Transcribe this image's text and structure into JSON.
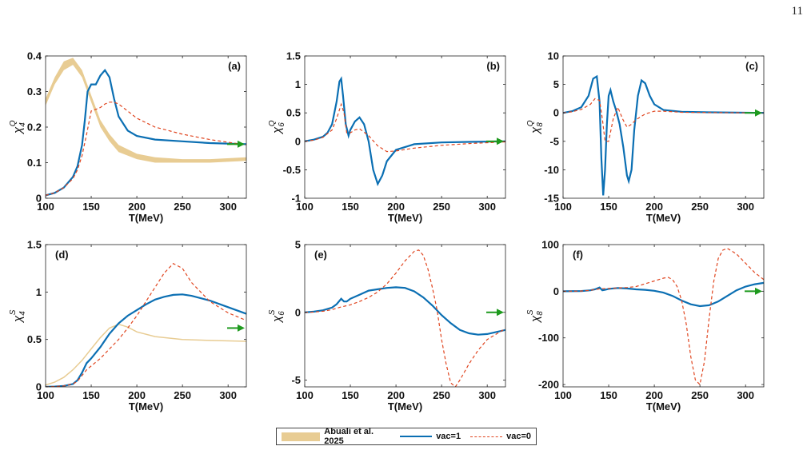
{
  "page_number": "11",
  "legend": {
    "band_label": "Abuali et al.  2025",
    "vac1_label": "vac=1",
    "vac0_label": "vac=0"
  },
  "colors": {
    "band": "#e8cc93",
    "vac1": "#0b6fb3",
    "vac0": "#e0451f",
    "arrow": "#1e9a1e"
  },
  "chart_data": [
    {
      "type": "line",
      "panel": "(a)",
      "xlabel": "T(MeV)",
      "ylabel_base": "χ",
      "ylabel_sub": "4",
      "ylabel_sup": "Q",
      "xlim": [
        100,
        320
      ],
      "ylim": [
        0,
        0.4
      ],
      "xticks": [
        100,
        150,
        200,
        250,
        300
      ],
      "yticks": [
        0,
        0.1,
        0.2,
        0.3,
        0.4
      ],
      "yticklabels": [
        "0",
        "0.1",
        "0.2",
        "0.3",
        "0.4"
      ],
      "arrow_value": 0.152,
      "series": [
        {
          "name": "vac=1",
          "x": [
            100,
            110,
            120,
            130,
            135,
            140,
            143,
            146,
            150,
            155,
            160,
            165,
            170,
            175,
            180,
            190,
            200,
            220,
            250,
            280,
            320
          ],
          "y": [
            0.008,
            0.015,
            0.03,
            0.06,
            0.09,
            0.15,
            0.22,
            0.3,
            0.32,
            0.32,
            0.345,
            0.36,
            0.34,
            0.28,
            0.23,
            0.19,
            0.175,
            0.165,
            0.16,
            0.155,
            0.152
          ]
        },
        {
          "name": "vac=0",
          "x": [
            100,
            110,
            120,
            130,
            135,
            140,
            145,
            150,
            155,
            160,
            165,
            170,
            175,
            180,
            190,
            200,
            220,
            250,
            280,
            320
          ],
          "y": [
            0.008,
            0.015,
            0.03,
            0.055,
            0.08,
            0.12,
            0.18,
            0.245,
            0.25,
            0.255,
            0.265,
            0.27,
            0.27,
            0.265,
            0.245,
            0.225,
            0.2,
            0.18,
            0.165,
            0.15
          ]
        }
      ],
      "band": {
        "x": [
          100,
          110,
          120,
          130,
          140,
          150,
          160,
          170,
          180,
          200,
          220,
          250,
          280,
          320
        ],
        "lower": [
          0.26,
          0.32,
          0.36,
          0.375,
          0.34,
          0.27,
          0.2,
          0.16,
          0.13,
          0.11,
          0.1,
          0.1,
          0.1,
          0.105
        ],
        "upper": [
          0.28,
          0.34,
          0.385,
          0.395,
          0.36,
          0.29,
          0.22,
          0.18,
          0.15,
          0.125,
          0.115,
          0.11,
          0.11,
          0.115
        ]
      }
    },
    {
      "type": "line",
      "panel": "(b)",
      "xlabel": "T(MeV)",
      "ylabel_base": "χ",
      "ylabel_sub": "6",
      "ylabel_sup": "Q",
      "xlim": [
        100,
        320
      ],
      "ylim": [
        -1,
        1.5
      ],
      "xticks": [
        100,
        150,
        200,
        250,
        300
      ],
      "yticks": [
        -1,
        -0.5,
        0,
        0.5,
        1,
        1.5
      ],
      "yticklabels": [
        "-1",
        "-0.5",
        "0",
        "0.5",
        "1",
        "1.5"
      ],
      "arrow_value": 0.0,
      "series": [
        {
          "name": "vac=1",
          "x": [
            100,
            110,
            120,
            125,
            130,
            135,
            138,
            140,
            142,
            145,
            148,
            150,
            155,
            160,
            165,
            170,
            175,
            180,
            185,
            190,
            200,
            220,
            250,
            280,
            320
          ],
          "y": [
            0,
            0.03,
            0.08,
            0.15,
            0.3,
            0.7,
            1.05,
            1.1,
            0.8,
            0.3,
            0.1,
            0.2,
            0.35,
            0.42,
            0.3,
            0.0,
            -0.5,
            -0.75,
            -0.6,
            -0.35,
            -0.15,
            -0.05,
            -0.02,
            -0.01,
            0
          ]
        },
        {
          "name": "vac=0",
          "x": [
            100,
            110,
            120,
            130,
            135,
            140,
            143,
            146,
            150,
            155,
            160,
            170,
            180,
            190,
            200,
            220,
            250,
            280,
            320
          ],
          "y": [
            0,
            0.02,
            0.07,
            0.2,
            0.4,
            0.65,
            0.5,
            0.15,
            0.15,
            0.2,
            0.22,
            0.1,
            -0.08,
            -0.18,
            -0.17,
            -0.12,
            -0.07,
            -0.04,
            -0.01
          ]
        }
      ]
    },
    {
      "type": "line",
      "panel": "(c)",
      "xlabel": "T(MeV)",
      "ylabel_base": "χ",
      "ylabel_sub": "8",
      "ylabel_sup": "Q",
      "xlim": [
        100,
        320
      ],
      "ylim": [
        -15,
        10
      ],
      "xticks": [
        100,
        150,
        200,
        250,
        300
      ],
      "yticks": [
        -15,
        -10,
        -5,
        0,
        5,
        10
      ],
      "yticklabels": [
        "-15",
        "-10",
        "-5",
        "0",
        "5",
        "10"
      ],
      "arrow_value": 0.0,
      "series": [
        {
          "name": "vac=1",
          "x": [
            100,
            110,
            120,
            128,
            133,
            137,
            140,
            142,
            144,
            146,
            148,
            150,
            152,
            155,
            158,
            162,
            166,
            170,
            172,
            175,
            178,
            182,
            186,
            190,
            195,
            200,
            210,
            230,
            260,
            320
          ],
          "y": [
            0,
            0.3,
            1,
            3,
            6,
            6.4,
            2,
            -8,
            -14.5,
            -10,
            -2,
            3,
            4,
            2,
            0.5,
            -2,
            -6,
            -11,
            -12,
            -10,
            -3,
            3,
            5.7,
            5.2,
            3,
            1.5,
            0.5,
            0.2,
            0.1,
            0
          ]
        },
        {
          "name": "vac=0",
          "x": [
            100,
            110,
            120,
            130,
            135,
            140,
            143,
            146,
            150,
            155,
            160,
            165,
            170,
            175,
            180,
            190,
            200,
            210,
            230,
            260,
            320
          ],
          "y": [
            0,
            0.2,
            0.6,
            1.5,
            2.5,
            2.2,
            -1,
            -5,
            -5,
            -1,
            1,
            -1,
            -2.5,
            -2,
            -1.2,
            -0.2,
            0.3,
            0.3,
            0.1,
            0.05,
            0
          ]
        }
      ]
    },
    {
      "type": "line",
      "panel": "(d)",
      "xlabel": "T(MeV)",
      "ylabel_base": "χ",
      "ylabel_sub": "4",
      "ylabel_sup": "S",
      "xlim": [
        100,
        320
      ],
      "ylim": [
        0,
        1.5
      ],
      "xticks": [
        100,
        150,
        200,
        250,
        300
      ],
      "yticks": [
        0,
        0.5,
        1,
        1.5
      ],
      "yticklabels": [
        "0",
        "0.5",
        "1",
        "1.5"
      ],
      "arrow_value": 0.62,
      "series": [
        {
          "name": "vac=1",
          "x": [
            100,
            110,
            120,
            130,
            135,
            140,
            145,
            150,
            160,
            170,
            180,
            190,
            200,
            210,
            220,
            230,
            240,
            250,
            260,
            280,
            300,
            320
          ],
          "y": [
            0,
            0.003,
            0.01,
            0.03,
            0.07,
            0.15,
            0.25,
            0.3,
            0.42,
            0.56,
            0.67,
            0.75,
            0.81,
            0.87,
            0.92,
            0.95,
            0.97,
            0.975,
            0.96,
            0.91,
            0.84,
            0.77
          ]
        },
        {
          "name": "vac=0",
          "x": [
            100,
            110,
            120,
            130,
            135,
            140,
            145,
            150,
            160,
            170,
            180,
            190,
            200,
            210,
            220,
            230,
            240,
            250,
            260,
            280,
            300,
            320
          ],
          "y": [
            0,
            0.003,
            0.01,
            0.03,
            0.06,
            0.12,
            0.18,
            0.22,
            0.3,
            0.4,
            0.5,
            0.62,
            0.75,
            0.9,
            1.05,
            1.2,
            1.3,
            1.25,
            1.1,
            0.9,
            0.78,
            0.7
          ]
        },
        {
          "name": "band",
          "x": [
            100,
            110,
            120,
            130,
            140,
            150,
            160,
            170,
            180,
            190,
            200,
            220,
            250,
            280,
            320
          ],
          "y": [
            0.02,
            0.05,
            0.1,
            0.18,
            0.28,
            0.4,
            0.52,
            0.62,
            0.66,
            0.63,
            0.58,
            0.53,
            0.5,
            0.49,
            0.48
          ]
        }
      ]
    },
    {
      "type": "line",
      "panel": "(e)",
      "xlabel": "T(MeV)",
      "ylabel_base": "χ",
      "ylabel_sub": "6",
      "ylabel_sup": "S",
      "xlim": [
        100,
        320
      ],
      "ylim": [
        -5.5,
        5
      ],
      "xticks": [
        100,
        150,
        200,
        250,
        300
      ],
      "yticks": [
        -5,
        0,
        5
      ],
      "yticklabels": [
        "-5",
        "0",
        "5"
      ],
      "arrow_value": 0.0,
      "series": [
        {
          "name": "vac=1",
          "x": [
            100,
            110,
            120,
            130,
            135,
            140,
            143,
            146,
            150,
            160,
            170,
            180,
            190,
            200,
            210,
            220,
            230,
            240,
            250,
            260,
            270,
            280,
            290,
            300,
            320
          ],
          "y": [
            0,
            0.05,
            0.15,
            0.35,
            0.6,
            1.0,
            0.8,
            0.8,
            1.0,
            1.3,
            1.6,
            1.7,
            1.8,
            1.85,
            1.8,
            1.55,
            1.1,
            0.5,
            -0.2,
            -0.8,
            -1.3,
            -1.55,
            -1.65,
            -1.6,
            -1.3
          ]
        },
        {
          "name": "vac=0",
          "x": [
            100,
            110,
            120,
            130,
            140,
            150,
            160,
            170,
            180,
            190,
            200,
            210,
            220,
            225,
            230,
            235,
            240,
            245,
            250,
            255,
            260,
            265,
            270,
            280,
            290,
            300,
            320
          ],
          "y": [
            0,
            0.02,
            0.08,
            0.2,
            0.4,
            0.55,
            0.8,
            1.1,
            1.5,
            2.1,
            2.9,
            3.8,
            4.5,
            4.6,
            4.2,
            3.2,
            1.8,
            0.2,
            -2.0,
            -3.8,
            -5.2,
            -5.5,
            -5.0,
            -3.8,
            -2.8,
            -2.0,
            -1.2
          ]
        }
      ]
    },
    {
      "type": "line",
      "panel": "(f)",
      "xlabel": "T(MeV)",
      "ylabel_base": "χ",
      "ylabel_sub": "8",
      "ylabel_sup": "S",
      "xlim": [
        100,
        320
      ],
      "ylim": [
        -205,
        100
      ],
      "xticks": [
        100,
        150,
        200,
        250,
        300
      ],
      "yticks": [
        -200,
        -100,
        0,
        100
      ],
      "yticklabels": [
        "-200",
        "-100",
        "0",
        "100"
      ],
      "arrow_value": 0.0,
      "series": [
        {
          "name": "vac=1",
          "x": [
            100,
            120,
            130,
            135,
            140,
            143,
            146,
            150,
            160,
            170,
            180,
            190,
            200,
            210,
            220,
            230,
            240,
            250,
            260,
            270,
            280,
            290,
            300,
            310,
            320
          ],
          "y": [
            0,
            0.5,
            2,
            4,
            8,
            2,
            3,
            5,
            7,
            6,
            4,
            3,
            1,
            -3,
            -10,
            -20,
            -28,
            -32,
            -30,
            -22,
            -10,
            2,
            10,
            15,
            18
          ]
        },
        {
          "name": "vac=0",
          "x": [
            100,
            120,
            130,
            140,
            150,
            160,
            170,
            180,
            190,
            200,
            210,
            215,
            220,
            225,
            230,
            235,
            240,
            245,
            250,
            255,
            260,
            265,
            270,
            275,
            280,
            290,
            300,
            310,
            320
          ],
          "y": [
            0,
            0.5,
            2,
            5,
            6,
            7,
            8,
            10,
            16,
            22,
            28,
            30,
            25,
            10,
            -20,
            -70,
            -140,
            -190,
            -200,
            -150,
            -60,
            20,
            70,
            88,
            92,
            80,
            60,
            40,
            25
          ]
        }
      ]
    }
  ]
}
